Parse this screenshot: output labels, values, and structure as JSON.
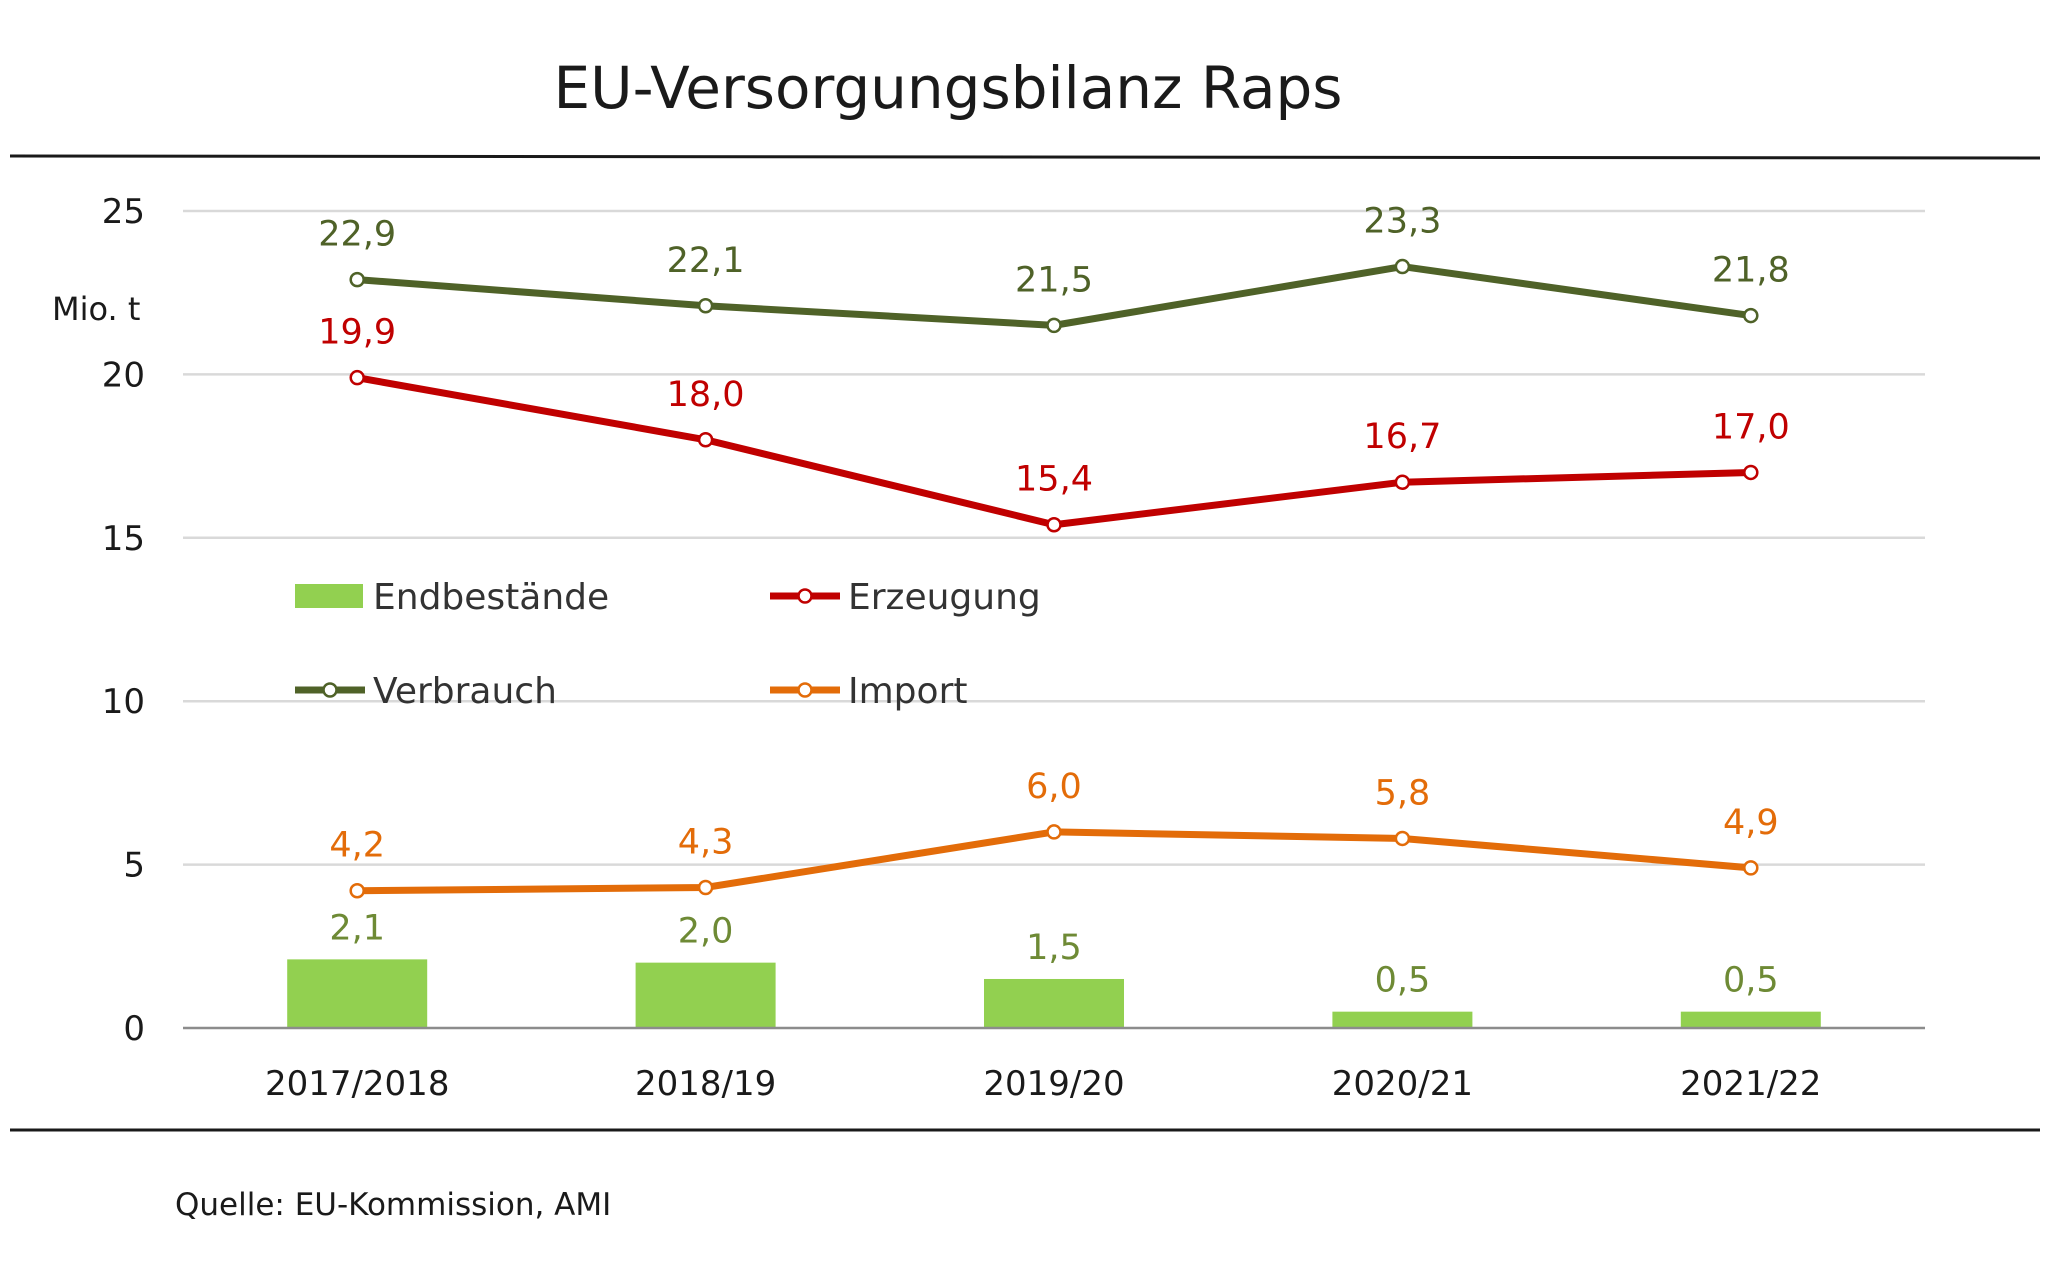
{
  "chart_data": {
    "type": "bar+line",
    "title": "EU-Versorgungsbilanz Raps",
    "ylabel": "Mio. t",
    "ylim": [
      0,
      25
    ],
    "yticks": [
      0,
      5,
      10,
      15,
      20,
      25
    ],
    "grid": true,
    "categories": [
      "2017/2018",
      "2018/19",
      "2019/20",
      "2020/21",
      "2021/22"
    ],
    "series": [
      {
        "name": "Endbestände",
        "kind": "bar",
        "color": "#92d050",
        "label_color": "#6e8a35",
        "values": [
          2.1,
          2.0,
          1.5,
          0.5,
          0.5
        ],
        "labels": [
          "2,1",
          "2,0",
          "1,5",
          "0,5",
          "0,5"
        ]
      },
      {
        "name": "Erzeugung",
        "kind": "line",
        "color": "#c00000",
        "label_color": "#c00000",
        "values": [
          19.9,
          18.0,
          15.4,
          16.7,
          17.0
        ],
        "labels": [
          "19,9",
          "18,0",
          "15,4",
          "16,7",
          "17,0"
        ]
      },
      {
        "name": "Verbrauch",
        "kind": "line",
        "color": "#4f6228",
        "label_color": "#4f6228",
        "values": [
          22.9,
          22.1,
          21.5,
          23.3,
          21.8
        ],
        "labels": [
          "22,9",
          "22,1",
          "21,5",
          "23,3",
          "21,8"
        ]
      },
      {
        "name": "Import",
        "kind": "line",
        "color": "#e36c09",
        "label_color": "#e36c09",
        "values": [
          4.2,
          4.3,
          6.0,
          5.8,
          4.9
        ],
        "labels": [
          "4,2",
          "4,3",
          "6,0",
          "5,8",
          "4,9"
        ]
      }
    ],
    "legend": [
      "Endbestände",
      "Erzeugung",
      "Verbrauch",
      "Import"
    ],
    "source": "Quelle: EU-Kommission, AMI"
  }
}
